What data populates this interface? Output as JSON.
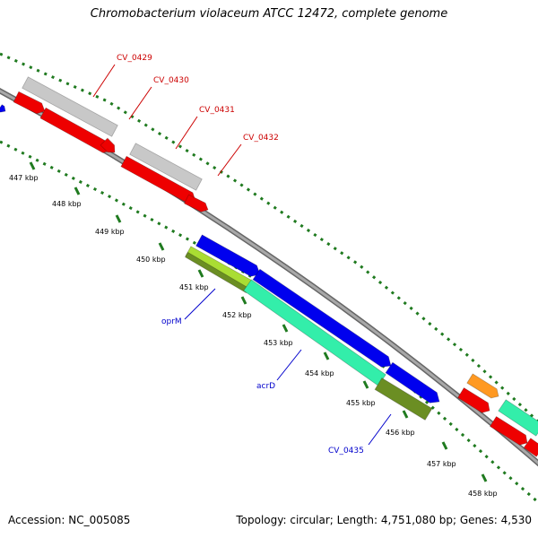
{
  "header": {
    "title": "Chromobacterium violaceum ATCC 12472, complete genome"
  },
  "footer": {
    "accession": "Accession: NC_005085",
    "summary": "Topology: circular; Length: 4,751,080 bp; Genes: 4,530"
  },
  "colors": {
    "backbone": "#808080",
    "forward_gray": "#c8c8c8",
    "forward_red": "#ee0000",
    "reverse_blue": "#0000ee",
    "reverse_teal": "#33eeaa",
    "reverse_olive": "#6b8e23",
    "reverse_lime": "#aadd33",
    "orange": "#ff9922",
    "tick_green": "#1f7a1f",
    "label_red": "#cc0000",
    "label_blue": "#0000cc"
  },
  "ticks": {
    "unit": "kbp",
    "labels": [
      "447 kbp",
      "448 kbp",
      "449 kbp",
      "450 kbp",
      "451 kbp",
      "452 kbp",
      "453 kbp",
      "454 kbp",
      "455 kbp",
      "456 kbp",
      "457 kbp",
      "458 kbp"
    ]
  },
  "genes": [
    {
      "label": "CV_0429",
      "strand": "forward"
    },
    {
      "label": "CV_0430",
      "strand": "forward"
    },
    {
      "label": "CV_0431",
      "strand": "forward"
    },
    {
      "label": "CV_0432",
      "strand": "forward"
    },
    {
      "label": "oprM",
      "strand": "reverse"
    },
    {
      "label": "acrD",
      "strand": "reverse"
    },
    {
      "label": "CV_0435",
      "strand": "reverse"
    }
  ]
}
